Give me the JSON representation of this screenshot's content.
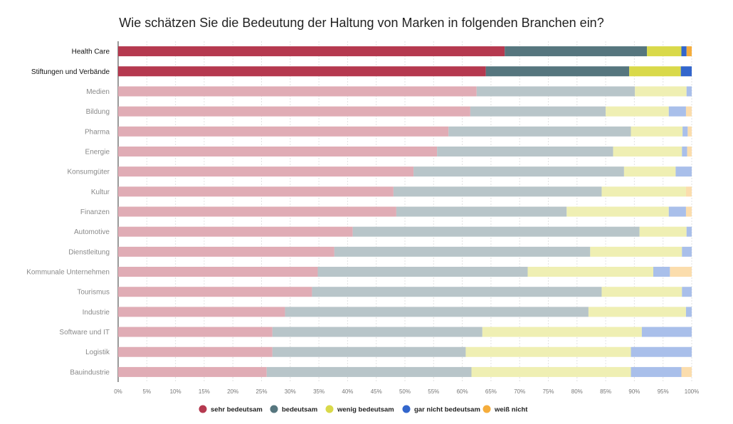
{
  "chart_data": {
    "type": "bar",
    "orientation": "horizontal",
    "stacked": true,
    "title": "Wie schätzen Sie die Bedeutung der Haltung von Marken in folgenden Branchen ein?",
    "categories": [
      "Health Care",
      "Stiftungen und Verbände",
      "Medien",
      "Bildung",
      "Pharma",
      "Energie",
      "Konsumgüter",
      "Kultur",
      "Finanzen",
      "Automotive",
      "Dienstleitung",
      "Kommunale Unternehmen",
      "Tourismus",
      "Industrie",
      "Software und IT",
      "Logistik",
      "Bauindustrie"
    ],
    "highlighted": [
      "Health Care",
      "Stiftungen und Verbände"
    ],
    "series": [
      {
        "name": "sehr bedeutsam",
        "color": "#b5394f",
        "values": [
          67.4,
          64.1,
          62.5,
          61.4,
          57.6,
          55.6,
          51.5,
          48.0,
          48.5,
          40.9,
          37.7,
          34.8,
          33.8,
          29.1,
          26.9,
          26.9,
          25.9
        ]
      },
      {
        "name": "bedeutsam",
        "color": "#56767e",
        "values": [
          24.8,
          25.0,
          27.6,
          23.6,
          31.8,
          30.7,
          36.7,
          36.3,
          29.7,
          50.0,
          44.6,
          36.6,
          50.5,
          52.9,
          36.6,
          33.7,
          35.7
        ]
      },
      {
        "name": "wenig bedeutsam",
        "color": "#d9d94a",
        "values": [
          6.0,
          9.0,
          9.0,
          11.0,
          9.0,
          12.0,
          9.0,
          14.7,
          17.8,
          8.2,
          16.0,
          21.9,
          14.0,
          17.0,
          27.8,
          28.8,
          27.8
        ]
      },
      {
        "name": "gar nicht bedeutsam",
        "color": "#3366cc",
        "values": [
          0.9,
          1.9,
          0.9,
          3.0,
          0.9,
          0.9,
          2.8,
          0.0,
          3.0,
          0.9,
          1.7,
          2.9,
          1.7,
          1.0,
          8.7,
          10.6,
          8.8
        ]
      },
      {
        "name": "weiß nicht",
        "color": "#f5ad3c",
        "values": [
          0.9,
          0.0,
          0.0,
          1.0,
          0.7,
          0.8,
          0.0,
          1.0,
          1.0,
          0.0,
          0.0,
          3.8,
          0.0,
          0.0,
          0.0,
          0.0,
          1.8
        ]
      }
    ],
    "xlim": [
      0,
      100
    ],
    "xticks": [
      "0%",
      "5%",
      "10%",
      "15%",
      "20%",
      "25%",
      "30%",
      "35%",
      "40%",
      "45%",
      "50%",
      "55%",
      "60%",
      "65%",
      "70%",
      "75%",
      "80%",
      "85%",
      "90%",
      "95%",
      "100%"
    ],
    "grid": true,
    "legend_position": "bottom"
  }
}
